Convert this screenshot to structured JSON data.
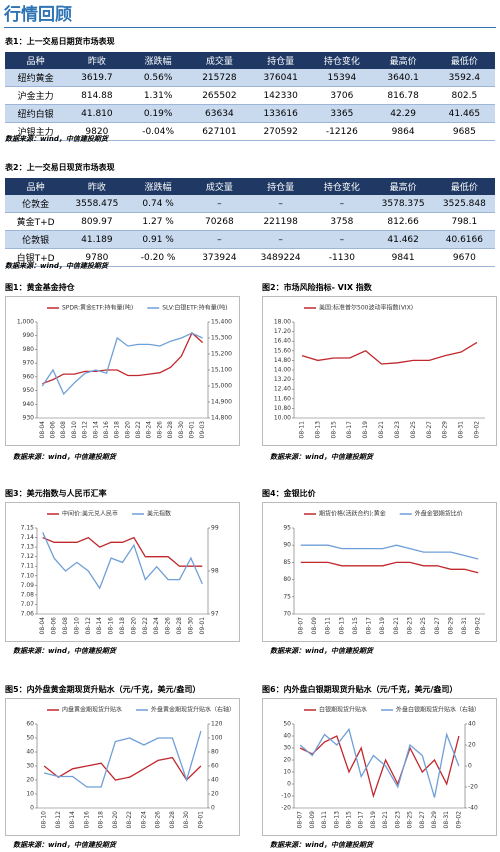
{
  "header": {
    "title": "行情回顾"
  },
  "tables": [
    {
      "caption": "表1：上一交易日期货市场表现",
      "columns": [
        "品种",
        "昨收",
        "涨跌幅",
        "成交量",
        "持仓量",
        "持仓变化",
        "最高价",
        "最低价"
      ],
      "rows": [
        [
          "纽约黄金",
          "3619.7",
          "0.56%",
          "215728",
          "376041",
          "15394",
          "3640.1",
          "3592.4"
        ],
        [
          "沪金主力",
          "814.88",
          "1.31%",
          "265502",
          "142330",
          "3706",
          "816.78",
          "802.5"
        ],
        [
          "纽约白银",
          "41.810",
          "0.19%",
          "63634",
          "133616",
          "3365",
          "42.29",
          "41.465"
        ],
        [
          "沪银主力",
          "9820",
          "-0.04%",
          "627101",
          "270592",
          "-12126",
          "9864",
          "9685"
        ]
      ],
      "source": "数据来源：wind，中信建投期货"
    },
    {
      "caption": "表2：上一交易日现货市场表现",
      "columns": [
        "品种",
        "昨收",
        "涨跌幅",
        "成交量",
        "持仓量",
        "持仓变化",
        "最高价",
        "最低价"
      ],
      "rows": [
        [
          "伦敦金",
          "3558.475",
          "0.74 %",
          "–",
          "–",
          "–",
          "3578.375",
          "3525.848"
        ],
        [
          "黄金T+D",
          "809.97",
          "1.27 %",
          "70268",
          "221198",
          "3758",
          "812.66",
          "798.1"
        ],
        [
          "伦敦银",
          "41.189",
          "0.91 %",
          "–",
          "–",
          "–",
          "41.462",
          "40.6166"
        ],
        [
          "白银T+D",
          "9780",
          "-0.20 %",
          "373924",
          "3489224",
          "-1130",
          "9841",
          "9670"
        ]
      ],
      "source": "数据来源：wind，中信建投期货"
    }
  ],
  "figures": [
    {
      "caption": "图1：黄金基金持仓",
      "source": "数据来源：wind，中信建投期货",
      "chart": {
        "type": "line",
        "categories": [
          "08-04",
          "08-06",
          "08-08",
          "08-10",
          "08-12",
          "08-14",
          "08-16",
          "08-18",
          "08-20",
          "08-22",
          "08-24",
          "08-26",
          "08-28",
          "08-30",
          "09-01",
          "09-03"
        ],
        "series": [
          {
            "name": "SPDR:黄金ETF:持有量(吨)",
            "color": "#c0282d",
            "values": [
              955,
              958,
              962,
              962,
              964,
              964,
              965,
              965,
              961,
              961,
              962,
              963,
              967,
              975,
              992,
              985
            ]
          },
          {
            "name": "SLV:白银ETF:持有量(吨)",
            "color": "#6f9fd8",
            "axis": "y2",
            "values": [
              15000,
              15100,
              14950,
              15020,
              15080,
              15100,
              15080,
              15300,
              15250,
              15260,
              15260,
              15250,
              15280,
              15300,
              15330,
              15300
            ]
          }
        ],
        "ylim": [
          930,
          1000
        ],
        "yticks": [
          930,
          940,
          950,
          960,
          970,
          980,
          990,
          {
            "value": 1000,
            "label": "1,000"
          }
        ],
        "y2lim": [
          14800,
          15400
        ],
        "y2ticks": [
          {
            "value": 14800,
            "label": "14,800"
          },
          {
            "value": 14900,
            "label": "14,900"
          },
          {
            "value": 15000,
            "label": "15,000"
          },
          {
            "value": 15100,
            "label": "15,100"
          },
          {
            "value": 15200,
            "label": "15,200"
          },
          {
            "value": 15300,
            "label": "15,300"
          },
          {
            "value": 15400,
            "label": "15,400"
          }
        ]
      }
    },
    {
      "caption": "图2：市场风险指标- VIX 指数",
      "source": "数据来源：wind，中信建投期货",
      "chart": {
        "type": "line",
        "categories": [
          "08-11",
          "08-13",
          "08-15",
          "08-17",
          "08-19",
          "08-21",
          "08-23",
          "08-25",
          "08-27",
          "08-29",
          "08-31",
          "09-02"
        ],
        "series": [
          {
            "name": "美国:标准普尔500波动率指数(VIX)",
            "color": "#c0282d",
            "values": [
              15.2,
              14.8,
              15.0,
              15.0,
              15.6,
              14.5,
              14.6,
              14.8,
              14.8,
              15.2,
              15.5,
              16.3
            ]
          }
        ],
        "ylim": [
          10,
          18
        ],
        "yticks": [
          {
            "value": 10,
            "label": "10.00"
          },
          {
            "value": 10.8,
            "label": "10.80"
          },
          {
            "value": 11.6,
            "label": "11.60"
          },
          {
            "value": 12.4,
            "label": "12.40"
          },
          {
            "value": 13.2,
            "label": "13.20"
          },
          {
            "value": 14,
            "label": "14.00"
          },
          {
            "value": 14.8,
            "label": "14.80"
          },
          {
            "value": 15.6,
            "label": "15.60"
          },
          {
            "value": 16.4,
            "label": "16.40"
          },
          {
            "value": 17.2,
            "label": "17.20"
          },
          {
            "value": 18,
            "label": "18.00"
          }
        ]
      }
    },
    {
      "caption": "图3：美元指数与人民币汇率",
      "source": "数据来源：wind，中信建投期货",
      "chart": {
        "type": "line",
        "categories": [
          "08-04",
          "08-06",
          "08-08",
          "08-10",
          "08-12",
          "08-14",
          "08-16",
          "08-18",
          "08-20",
          "08-22",
          "08-24",
          "08-26",
          "08-28",
          "08-30",
          "09-01"
        ],
        "series": [
          {
            "name": "中间价:美元兑人民币",
            "color": "#c0282d",
            "values": [
              7.14,
              7.135,
              7.135,
              7.135,
              7.14,
              7.13,
              7.135,
              7.135,
              7.14,
              7.12,
              7.12,
              7.12,
              7.11,
              7.11,
              7.11
            ]
          },
          {
            "name": "美元指数",
            "color": "#6f9fd8",
            "axis": "y2",
            "values": [
              98.9,
              98.3,
              98.0,
              98.2,
              98.0,
              97.6,
              98.3,
              98.2,
              98.6,
              97.8,
              98.1,
              97.8,
              97.8,
              98.3,
              97.7
            ]
          }
        ],
        "ylim": [
          7.06,
          7.15
        ],
        "yticks": [
          7.06,
          7.07,
          7.08,
          7.09,
          {
            "value": 7.1,
            "label": "7.10"
          },
          7.11,
          7.12,
          7.13,
          7.14,
          7.15
        ],
        "y2lim": [
          97,
          99
        ],
        "y2ticks": [
          97,
          98,
          99
        ]
      }
    },
    {
      "caption": "图4：金银比价",
      "source": "数据来源：wind，中信建投期货",
      "chart": {
        "type": "line",
        "categories": [
          "08-07",
          "08-09",
          "08-11",
          "08-13",
          "08-15",
          "08-17",
          "08-19",
          "08-21",
          "08-23",
          "08-25",
          "08-27",
          "08-29",
          "08-31",
          "09-02"
        ],
        "series": [
          {
            "name": "期货价格(活跃合约):黄金",
            "color": "#c0282d",
            "values": [
              85,
              85,
              85,
              84,
              84,
              84,
              84,
              85,
              85,
              84,
              84,
              83,
              83,
              82
            ]
          },
          {
            "name": "外盘金银期货比价",
            "color": "#6f9fd8",
            "values": [
              90,
              90,
              90,
              89,
              89,
              89,
              89,
              90,
              89,
              88,
              88,
              88,
              87,
              86
            ]
          }
        ],
        "ylim": [
          70,
          95
        ],
        "yticks": [
          70,
          75,
          80,
          85,
          90,
          95
        ]
      }
    },
    {
      "caption": "图5：内外盘黄金期现货升贴水（元/千克，美元/盎司）",
      "source": "数据来源：wind，中信建投期货",
      "chart": {
        "type": "line",
        "categories": [
          "08-10",
          "08-12",
          "08-14",
          "08-16",
          "08-18",
          "08-20",
          "08-22",
          "08-24",
          "08-26",
          "08-28",
          "08-30",
          "09-01"
        ],
        "series": [
          {
            "name": "内盘黄金期现货升贴水",
            "color": "#c0282d",
            "values": [
              30,
              22,
              28,
              30,
              32,
              20,
              22,
              28,
              34,
              36,
              20,
              30
            ]
          },
          {
            "name": "外盘黄金期现货升贴水（右轴）",
            "color": "#6f9fd8",
            "axis": "y2",
            "values": [
              50,
              45,
              45,
              30,
              30,
              95,
              100,
              90,
              100,
              100,
              40,
              110
            ]
          }
        ],
        "ylim": [
          0,
          60
        ],
        "yticks": [
          0,
          10,
          20,
          30,
          40,
          50,
          60
        ],
        "y2lim": [
          0,
          120
        ],
        "y2ticks": [
          0,
          20,
          40,
          60,
          80,
          100,
          120
        ]
      }
    },
    {
      "caption": "图6：内外盘白银期现货升贴水（元/千克，美元/盎司）",
      "source": "数据来源：wind，中信建投期货",
      "chart": {
        "type": "line",
        "categories": [
          "08-07",
          "08-09",
          "08-11",
          "08-13",
          "08-15",
          "08-17",
          "08-19",
          "08-21",
          "08-23",
          "08-25",
          "08-27",
          "08-29",
          "08-31",
          "09-02"
        ],
        "series": [
          {
            "name": "白银期现货升贴水",
            "color": "#c0282d",
            "values": [
              30,
              25,
              35,
              40,
              10,
              30,
              -10,
              20,
              0,
              30,
              10,
              20,
              0,
              40
            ]
          },
          {
            "name": "外盘白银期现货升贴水（右轴）",
            "color": "#6f9fd8",
            "axis": "y2",
            "values": [
              20,
              10,
              30,
              20,
              35,
              -10,
              10,
              0,
              -20,
              20,
              10,
              -30,
              30,
              0
            ]
          }
        ],
        "ylim": [
          -20,
          50
        ],
        "yticks": [
          -20,
          -10,
          0,
          10,
          20,
          30,
          40,
          50
        ],
        "y2lim": [
          -40,
          40
        ],
        "y2ticks": [
          -40,
          -20,
          0,
          20,
          40
        ]
      }
    }
  ]
}
